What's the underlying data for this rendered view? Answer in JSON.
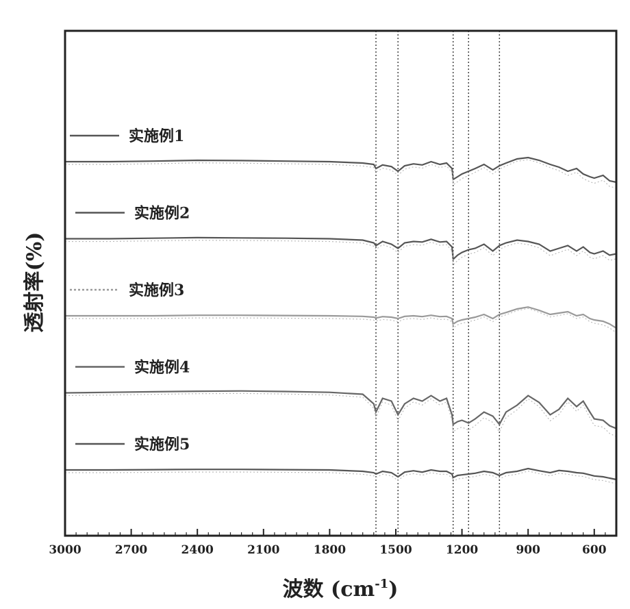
{
  "chart_data": {
    "type": "line",
    "xlabel": "波数 (cm",
    "xlabel_sup": "-1",
    "xlabel_tail": ")",
    "ylabel": "透射率(%)",
    "xlim": [
      3000,
      500
    ],
    "x_ticks": [
      3000,
      2700,
      2400,
      2100,
      1800,
      1500,
      1200,
      900,
      600
    ],
    "x_tick_labels": [
      "3000",
      "2700",
      "2400",
      "2100",
      "1800",
      "1500",
      "1200",
      "900",
      "600"
    ],
    "y_ticks_visible": false,
    "grid": false,
    "reference_lines_x": [
      1590,
      1490,
      1240,
      1170,
      1030
    ],
    "series": [
      {
        "name": "实施例1",
        "color": "#555555",
        "offset": 5,
        "x": [
          3000,
          2800,
          2600,
          2400,
          2200,
          2000,
          1800,
          1650,
          1600,
          1590,
          1560,
          1520,
          1490,
          1460,
          1420,
          1380,
          1340,
          1300,
          1270,
          1245,
          1240,
          1220,
          1200,
          1170,
          1140,
          1100,
          1060,
          1030,
          1000,
          950,
          900,
          850,
          800,
          760,
          720,
          680,
          650,
          620,
          600,
          560,
          530,
          500
        ],
        "y": [
          0.0,
          0.0,
          0.02,
          0.05,
          0.04,
          0.02,
          0.0,
          -0.05,
          -0.1,
          -0.25,
          -0.12,
          -0.18,
          -0.35,
          -0.15,
          -0.08,
          -0.12,
          0.0,
          -0.1,
          -0.05,
          -0.25,
          -0.65,
          -0.55,
          -0.45,
          -0.35,
          -0.25,
          -0.1,
          -0.3,
          -0.15,
          -0.05,
          0.1,
          0.15,
          0.05,
          -0.1,
          -0.2,
          -0.35,
          -0.25,
          -0.45,
          -0.55,
          -0.6,
          -0.5,
          -0.7,
          -0.75
        ]
      },
      {
        "name": "实施例2",
        "color": "#555555",
        "offset": 4,
        "x": [
          3000,
          2800,
          2600,
          2400,
          2200,
          2000,
          1800,
          1650,
          1600,
          1590,
          1560,
          1520,
          1490,
          1460,
          1420,
          1380,
          1340,
          1300,
          1270,
          1245,
          1240,
          1220,
          1200,
          1170,
          1140,
          1100,
          1060,
          1030,
          1000,
          950,
          900,
          850,
          800,
          760,
          720,
          680,
          650,
          620,
          600,
          560,
          530,
          500
        ],
        "y": [
          0.0,
          0.0,
          0.02,
          0.04,
          0.03,
          0.02,
          0.0,
          -0.05,
          -0.15,
          -0.25,
          -0.1,
          -0.2,
          -0.35,
          -0.15,
          -0.1,
          -0.12,
          -0.02,
          -0.12,
          -0.1,
          -0.3,
          -0.75,
          -0.6,
          -0.5,
          -0.4,
          -0.35,
          -0.2,
          -0.45,
          -0.25,
          -0.15,
          -0.05,
          -0.1,
          -0.2,
          -0.45,
          -0.35,
          -0.25,
          -0.45,
          -0.3,
          -0.5,
          -0.55,
          -0.45,
          -0.6,
          -0.55
        ]
      },
      {
        "name": "实施例3",
        "color": "#999999",
        "offset": 3,
        "x": [
          3000,
          2800,
          2600,
          2400,
          2200,
          2000,
          1800,
          1650,
          1600,
          1590,
          1560,
          1520,
          1490,
          1460,
          1420,
          1380,
          1340,
          1300,
          1270,
          1245,
          1240,
          1220,
          1200,
          1170,
          1140,
          1100,
          1060,
          1030,
          1000,
          950,
          900,
          850,
          800,
          760,
          720,
          680,
          650,
          620,
          600,
          560,
          530,
          500
        ],
        "y": [
          0.0,
          0.0,
          0.0,
          0.02,
          0.02,
          0.01,
          0.0,
          -0.02,
          -0.05,
          -0.08,
          -0.03,
          -0.05,
          -0.1,
          -0.02,
          0.0,
          -0.03,
          0.02,
          -0.03,
          -0.02,
          -0.1,
          -0.3,
          -0.2,
          -0.15,
          -0.1,
          -0.05,
          0.05,
          -0.1,
          0.05,
          0.12,
          0.25,
          0.32,
          0.2,
          0.05,
          0.1,
          0.15,
          0.0,
          0.05,
          -0.1,
          -0.15,
          -0.2,
          -0.3,
          -0.45
        ]
      },
      {
        "name": "实施例4",
        "color": "#666666",
        "offset": 2,
        "x": [
          3000,
          2800,
          2600,
          2400,
          2200,
          2000,
          1800,
          1650,
          1600,
          1590,
          1560,
          1520,
          1490,
          1460,
          1420,
          1380,
          1340,
          1300,
          1270,
          1245,
          1240,
          1220,
          1200,
          1170,
          1140,
          1100,
          1060,
          1030,
          1000,
          950,
          900,
          850,
          800,
          760,
          720,
          680,
          650,
          620,
          600,
          560,
          530,
          500
        ],
        "y": [
          0.0,
          0.02,
          0.04,
          0.06,
          0.07,
          0.05,
          0.02,
          -0.05,
          -0.4,
          -0.7,
          -0.2,
          -0.3,
          -0.8,
          -0.4,
          -0.2,
          -0.3,
          -0.1,
          -0.3,
          -0.2,
          -0.8,
          -1.15,
          -1.05,
          -1.0,
          -1.1,
          -0.95,
          -0.7,
          -0.85,
          -1.15,
          -0.7,
          -0.45,
          -0.1,
          -0.35,
          -0.8,
          -0.6,
          -0.2,
          -0.5,
          -0.3,
          -0.7,
          -0.95,
          -1.0,
          -1.2,
          -1.3
        ]
      },
      {
        "name": "实施例5",
        "color": "#555555",
        "offset": 1,
        "x": [
          3000,
          2800,
          2600,
          2400,
          2200,
          2000,
          1800,
          1650,
          1600,
          1590,
          1560,
          1520,
          1490,
          1460,
          1420,
          1380,
          1340,
          1300,
          1270,
          1245,
          1240,
          1220,
          1200,
          1170,
          1140,
          1100,
          1060,
          1030,
          1000,
          950,
          900,
          850,
          800,
          760,
          720,
          680,
          650,
          620,
          600,
          560,
          530,
          500
        ],
        "y": [
          0.0,
          0.0,
          0.01,
          0.02,
          0.02,
          0.01,
          0.0,
          -0.05,
          -0.1,
          -0.15,
          -0.05,
          -0.1,
          -0.25,
          -0.08,
          -0.03,
          -0.08,
          0.0,
          -0.05,
          -0.05,
          -0.15,
          -0.28,
          -0.2,
          -0.18,
          -0.15,
          -0.12,
          -0.05,
          -0.1,
          -0.2,
          -0.1,
          -0.05,
          0.05,
          -0.03,
          -0.1,
          -0.02,
          -0.05,
          -0.1,
          -0.12,
          -0.18,
          -0.22,
          -0.25,
          -0.3,
          -0.35
        ]
      }
    ]
  }
}
